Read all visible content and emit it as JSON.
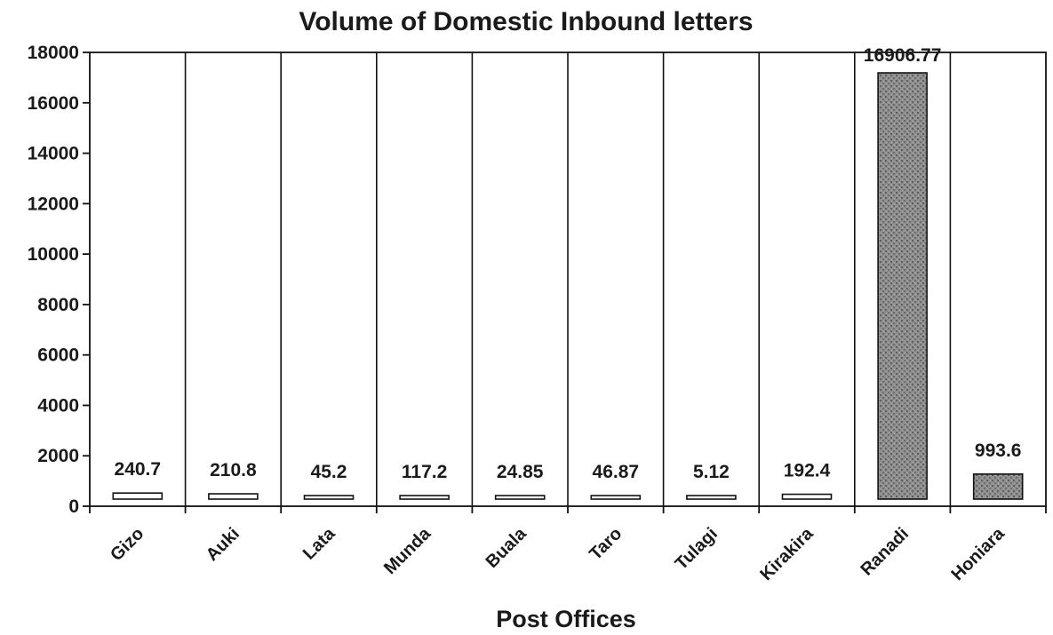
{
  "chart_data": {
    "type": "bar",
    "title": "Volume of Domestic Inbound letters",
    "xlabel": "Post Offices",
    "ylabel": "",
    "categories": [
      "Gizo",
      "Auki",
      "Lata",
      "Munda",
      "Buala",
      "Taro",
      "Tulagi",
      "Kirakira",
      "Ranadi",
      "Honiara"
    ],
    "values": [
      240.7,
      210.8,
      45.2,
      117.2,
      24.85,
      46.87,
      5.12,
      192.4,
      16906.77,
      993.6
    ],
    "data_labels": [
      "240.7",
      "210.8",
      "45.2",
      "117.2",
      "24.85",
      "46.87",
      "5.12",
      "192.4",
      "16906.77",
      "993.6"
    ],
    "ylim": [
      0,
      18000
    ],
    "yticks": [
      "0",
      "2000",
      "4000",
      "6000",
      "8000",
      "10000",
      "12000",
      "14000",
      "16000",
      "18000"
    ],
    "bar_fill": "#ffffff",
    "highlight_fill": "#9a9a9a",
    "highlighted_categories": [
      "Ranadi",
      "Honiara"
    ],
    "grid": false,
    "legend": "none"
  }
}
